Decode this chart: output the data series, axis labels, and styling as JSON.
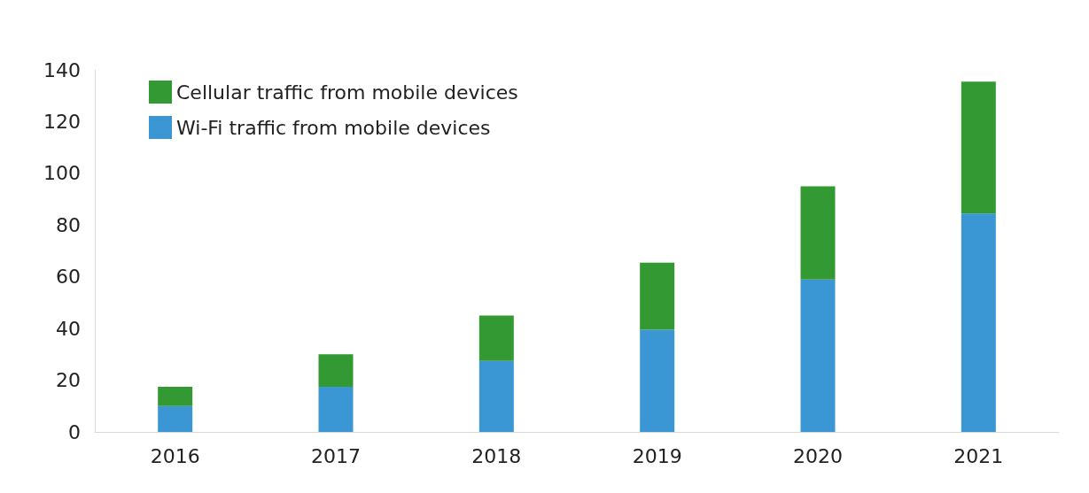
{
  "chart_data": {
    "type": "bar",
    "stacked": true,
    "categories": [
      "2016",
      "2017",
      "2018",
      "2019",
      "2020",
      "2021"
    ],
    "series": [
      {
        "name": "Wi-Fi traffic from mobile devices",
        "color": "#3a97d4",
        "values": [
          10,
          17.5,
          27.5,
          39.5,
          59,
          84.5
        ]
      },
      {
        "name": "Cellular traffic from mobile devices",
        "color": "#339933",
        "values": [
          7.5,
          12.5,
          17.5,
          26,
          36,
          51
        ]
      }
    ],
    "ylim": [
      0,
      140
    ],
    "yticks": [
      0,
      20,
      40,
      60,
      80,
      100,
      120,
      140
    ],
    "grid": false,
    "legend": "top left"
  }
}
